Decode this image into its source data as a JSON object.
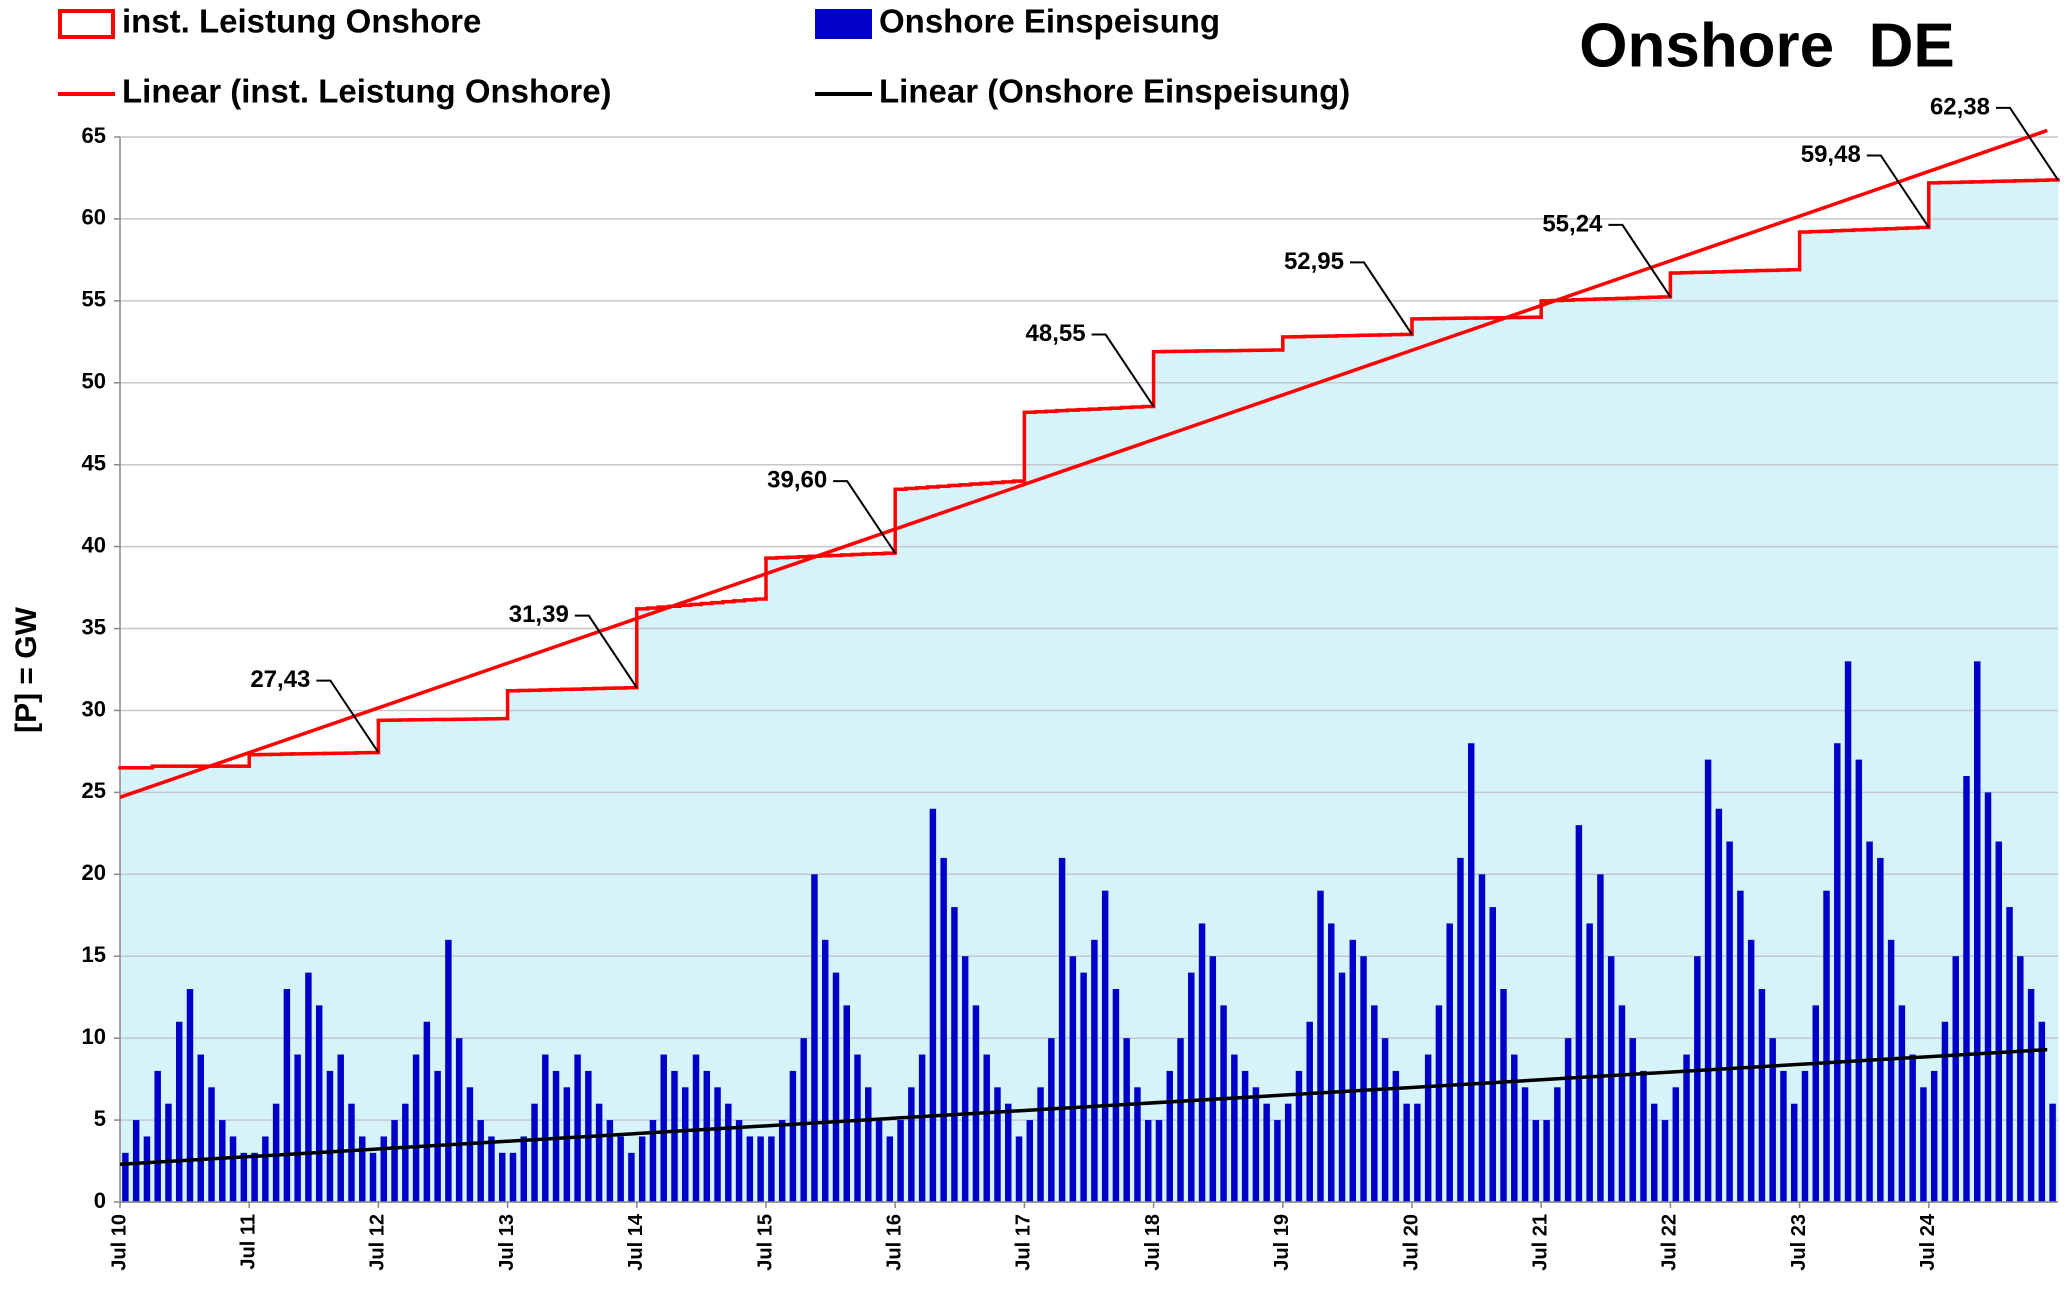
{
  "chart_data": {
    "type": "combo",
    "title": "Onshore  DE",
    "y_label": "[P] = GW",
    "categories": [
      "Jul 10",
      null,
      null,
      null,
      null,
      null,
      null,
      null,
      null,
      null,
      null,
      null,
      "Jul 11",
      null,
      null,
      null,
      null,
      null,
      null,
      null,
      null,
      null,
      null,
      null,
      "Jul 12",
      null,
      null,
      null,
      null,
      null,
      null,
      null,
      null,
      null,
      null,
      null,
      "Jul 13",
      null,
      null,
      null,
      null,
      null,
      null,
      null,
      null,
      null,
      null,
      null,
      "Jul 14",
      null,
      null,
      null,
      null,
      null,
      null,
      null,
      null,
      null,
      null,
      null,
      "Jul 15",
      null,
      null,
      null,
      null,
      null,
      null,
      null,
      null,
      null,
      null,
      null,
      "Jul 16",
      null,
      null,
      null,
      null,
      null,
      null,
      null,
      null,
      null,
      null,
      null,
      "Jul 17",
      null,
      null,
      null,
      null,
      null,
      null,
      null,
      null,
      null,
      null,
      null,
      "Jul 18",
      null,
      null,
      null,
      null,
      null,
      null,
      null,
      null,
      null,
      null,
      null,
      "Jul 19",
      null,
      null,
      null,
      null,
      null,
      null,
      null,
      null,
      null,
      null,
      null,
      "Jul 20",
      null,
      null,
      null,
      null,
      null,
      null,
      null,
      null,
      null,
      null,
      null,
      "Jul 21",
      null,
      null,
      null,
      null,
      null,
      null,
      null,
      null,
      null,
      null,
      null,
      "Jul 22",
      null,
      null,
      null,
      null,
      null,
      null,
      null,
      null,
      null,
      null,
      null,
      "Jul 23",
      null,
      null,
      null,
      null,
      null,
      null,
      null,
      null,
      null,
      null,
      null,
      "Jul 24",
      null,
      null,
      null,
      null,
      null,
      null,
      null,
      null,
      null,
      null,
      null
    ],
    "series": [
      {
        "name": "inst. Leistung Onshore",
        "type": "step-area",
        "color": "#ff0000",
        "fill": "#d6f3fa",
        "values": [
          26.5,
          26.5,
          26.5,
          26.6,
          26.6,
          26.6,
          26.6,
          26.6,
          26.6,
          26.6,
          26.6,
          26.6,
          27.3,
          27.31,
          27.32,
          27.34,
          27.35,
          27.36,
          27.37,
          27.38,
          27.39,
          27.4,
          27.42,
          27.43,
          29.4,
          29.41,
          29.42,
          29.43,
          29.44,
          29.45,
          29.45,
          29.46,
          29.47,
          29.48,
          29.49,
          29.5,
          31.2,
          31.22,
          31.23,
          31.25,
          31.27,
          31.29,
          31.3,
          31.32,
          31.34,
          31.36,
          31.37,
          31.39,
          36.2,
          36.25,
          36.31,
          36.36,
          36.42,
          36.47,
          36.53,
          36.58,
          36.64,
          36.69,
          36.75,
          36.8,
          39.3,
          39.33,
          39.35,
          39.38,
          39.41,
          39.44,
          39.46,
          39.49,
          39.52,
          39.55,
          39.57,
          39.6,
          43.5,
          43.55,
          43.59,
          43.64,
          43.68,
          43.73,
          43.77,
          43.82,
          43.86,
          43.91,
          43.95,
          44.0,
          48.2,
          48.23,
          48.26,
          48.3,
          48.33,
          48.36,
          48.39,
          48.42,
          48.45,
          48.49,
          48.52,
          48.55,
          51.9,
          51.91,
          51.92,
          51.93,
          51.94,
          51.95,
          51.95,
          51.96,
          51.97,
          51.98,
          51.99,
          52.0,
          52.8,
          52.81,
          52.83,
          52.84,
          52.85,
          52.87,
          52.88,
          52.9,
          52.91,
          52.92,
          52.94,
          52.95,
          53.9,
          53.91,
          53.92,
          53.93,
          53.94,
          53.95,
          53.95,
          53.96,
          53.97,
          53.98,
          53.99,
          54.0,
          55.0,
          55.02,
          55.04,
          55.07,
          55.09,
          55.11,
          55.13,
          55.15,
          55.17,
          55.2,
          55.22,
          55.24,
          56.7,
          56.72,
          56.74,
          56.75,
          56.77,
          56.79,
          56.81,
          56.83,
          56.85,
          56.86,
          56.88,
          56.9,
          59.2,
          59.23,
          59.25,
          59.28,
          59.3,
          59.33,
          59.35,
          59.38,
          59.4,
          59.43,
          59.45,
          59.48,
          62.2,
          62.22,
          62.23,
          62.25,
          62.26,
          62.28,
          62.3,
          62.31,
          62.33,
          62.34,
          62.36,
          62.38
        ],
        "value_labels": [
          null,
          null,
          null,
          null,
          null,
          null,
          null,
          null,
          null,
          null,
          null,
          null,
          null,
          null,
          null,
          null,
          null,
          null,
          null,
          null,
          null,
          null,
          null,
          "27,43",
          null,
          null,
          null,
          null,
          null,
          null,
          null,
          null,
          null,
          null,
          null,
          null,
          null,
          null,
          null,
          null,
          null,
          null,
          null,
          null,
          null,
          null,
          null,
          "31,39",
          null,
          null,
          null,
          null,
          null,
          null,
          null,
          null,
          null,
          null,
          null,
          null,
          null,
          null,
          null,
          null,
          null,
          null,
          null,
          null,
          null,
          null,
          null,
          "39,60",
          null,
          null,
          null,
          null,
          null,
          null,
          null,
          null,
          null,
          null,
          null,
          null,
          null,
          null,
          null,
          null,
          null,
          null,
          null,
          null,
          null,
          null,
          null,
          "48,55",
          null,
          null,
          null,
          null,
          null,
          null,
          null,
          null,
          null,
          null,
          null,
          null,
          null,
          null,
          null,
          null,
          null,
          null,
          null,
          null,
          null,
          null,
          null,
          "52,95",
          null,
          null,
          null,
          null,
          null,
          null,
          null,
          null,
          null,
          null,
          null,
          null,
          null,
          null,
          null,
          null,
          null,
          null,
          null,
          null,
          null,
          null,
          null,
          "55,24",
          null,
          null,
          null,
          null,
          null,
          null,
          null,
          null,
          null,
          null,
          null,
          null,
          null,
          null,
          null,
          null,
          null,
          null,
          null,
          null,
          null,
          null,
          null,
          "59,48",
          null,
          null,
          null,
          null,
          null,
          null,
          null,
          null,
          null,
          null,
          null,
          "62,38"
        ]
      },
      {
        "name": "Onshore Einspeisung",
        "type": "bar",
        "color": "#0000c8",
        "values": [
          3,
          5,
          4,
          8,
          6,
          11,
          13,
          9,
          7,
          5,
          4,
          3,
          3,
          4,
          6,
          13,
          9,
          14,
          12,
          8,
          9,
          6,
          4,
          3,
          4,
          5,
          6,
          9,
          11,
          8,
          16,
          10,
          7,
          5,
          4,
          3,
          3,
          4,
          6,
          9,
          8,
          7,
          9,
          8,
          6,
          5,
          4,
          3,
          4,
          5,
          9,
          8,
          7,
          9,
          8,
          7,
          6,
          5,
          4,
          4,
          4,
          5,
          8,
          10,
          20,
          16,
          14,
          12,
          9,
          7,
          5,
          4,
          5,
          7,
          9,
          24,
          21,
          18,
          15,
          12,
          9,
          7,
          6,
          4,
          5,
          7,
          10,
          21,
          15,
          14,
          16,
          19,
          13,
          10,
          7,
          5,
          5,
          8,
          10,
          14,
          17,
          15,
          12,
          9,
          8,
          7,
          6,
          5,
          6,
          8,
          11,
          19,
          17,
          14,
          16,
          15,
          12,
          10,
          8,
          6,
          6,
          9,
          12,
          17,
          21,
          28,
          20,
          18,
          13,
          9,
          7,
          5,
          5,
          7,
          10,
          23,
          17,
          20,
          15,
          12,
          10,
          8,
          6,
          5,
          7,
          9,
          15,
          27,
          24,
          22,
          19,
          16,
          13,
          10,
          8,
          6,
          8,
          12,
          19,
          28,
          33,
          27,
          22,
          21,
          16,
          12,
          9,
          7,
          8,
          11,
          15,
          26,
          33,
          25,
          22,
          18,
          15,
          13,
          11,
          6
        ]
      }
    ],
    "trendlines": [
      {
        "name": "Linear (inst. Leistung Onshore)",
        "color": "#ff0000",
        "values": [
          24.7,
          65.4
        ]
      },
      {
        "name": "Linear (Onshore Einspeisung)",
        "color": "#000000",
        "values": [
          2.3,
          9.3
        ]
      }
    ],
    "ylim": [
      0,
      65
    ],
    "yticks": [
      0,
      5,
      10,
      15,
      20,
      25,
      30,
      35,
      40,
      45,
      50,
      55,
      60,
      65
    ],
    "grid": true
  }
}
